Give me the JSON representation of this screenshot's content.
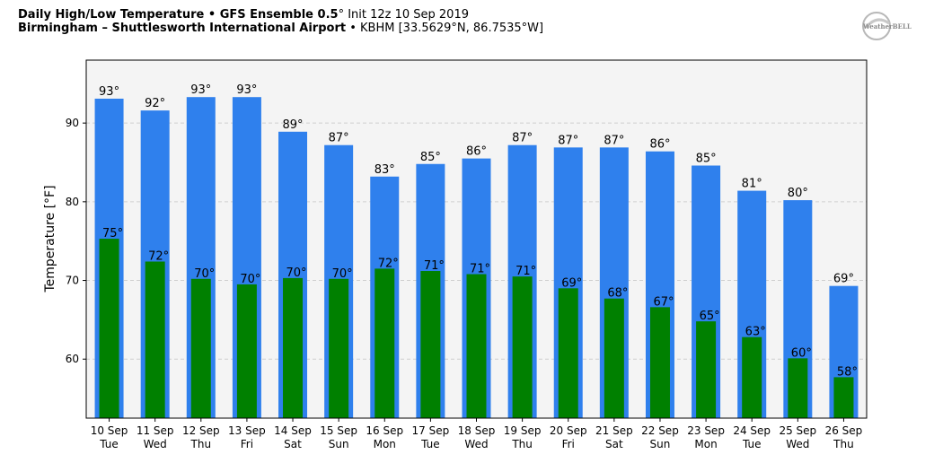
{
  "header": {
    "title_bold": "Daily High/Low Temperature • GFS Ensemble 0.5",
    "title_deg": "°",
    "title_rest": " Init 12z 10 Sep 2019",
    "location_bold": "Birmingham – Shuttlesworth International Airport",
    "location_rest": " • KBHM [33.5629°N, 86.7535°W]"
  },
  "logo": {
    "text": "WeatherBELL"
  },
  "colors": {
    "high": "#2f80ed",
    "low": "#008000",
    "plot_bg": "#f4f4f4",
    "grid": "#cfcfcf"
  },
  "chart_data": {
    "type": "bar",
    "title": "Daily High/Low Temperature • GFS Ensemble 0.5° Init 12z 10 Sep 2019",
    "xlabel": "",
    "ylabel": "Temperature [°F]",
    "ylim": [
      52.5,
      98
    ],
    "yticks": [
      60,
      70,
      80,
      90
    ],
    "grid": true,
    "categories": [
      "10 Sep",
      "11 Sep",
      "12 Sep",
      "13 Sep",
      "14 Sep",
      "15 Sep",
      "16 Sep",
      "17 Sep",
      "18 Sep",
      "19 Sep",
      "20 Sep",
      "21 Sep",
      "22 Sep",
      "23 Sep",
      "24 Sep",
      "25 Sep",
      "26 Sep"
    ],
    "weekdays": [
      "Tue",
      "Wed",
      "Thu",
      "Fri",
      "Sat",
      "Sun",
      "Mon",
      "Tue",
      "Wed",
      "Thu",
      "Fri",
      "Sat",
      "Sun",
      "Mon",
      "Tue",
      "Wed",
      "Thu"
    ],
    "series": [
      {
        "name": "High",
        "values": [
          93.1,
          91.6,
          93.3,
          93.3,
          88.9,
          87.2,
          83.2,
          84.8,
          85.5,
          87.2,
          86.9,
          86.9,
          86.4,
          84.6,
          81.4,
          80.2,
          69.3
        ],
        "labels": [
          "93°",
          "92°",
          "93°",
          "93°",
          "89°",
          "87°",
          "83°",
          "85°",
          "86°",
          "87°",
          "87°",
          "87°",
          "86°",
          "85°",
          "81°",
          "80°",
          "69°"
        ]
      },
      {
        "name": "Low",
        "values": [
          75.3,
          72.4,
          70.2,
          69.5,
          70.3,
          70.2,
          71.5,
          71.2,
          70.8,
          70.5,
          69.0,
          67.7,
          66.6,
          64.8,
          62.8,
          60.1,
          57.7
        ],
        "labels": [
          "75°",
          "72°",
          "70°",
          "70°",
          "70°",
          "70°",
          "72°",
          "71°",
          "71°",
          "71°",
          "69°",
          "68°",
          "67°",
          "65°",
          "63°",
          "60°",
          "58°"
        ]
      }
    ]
  }
}
